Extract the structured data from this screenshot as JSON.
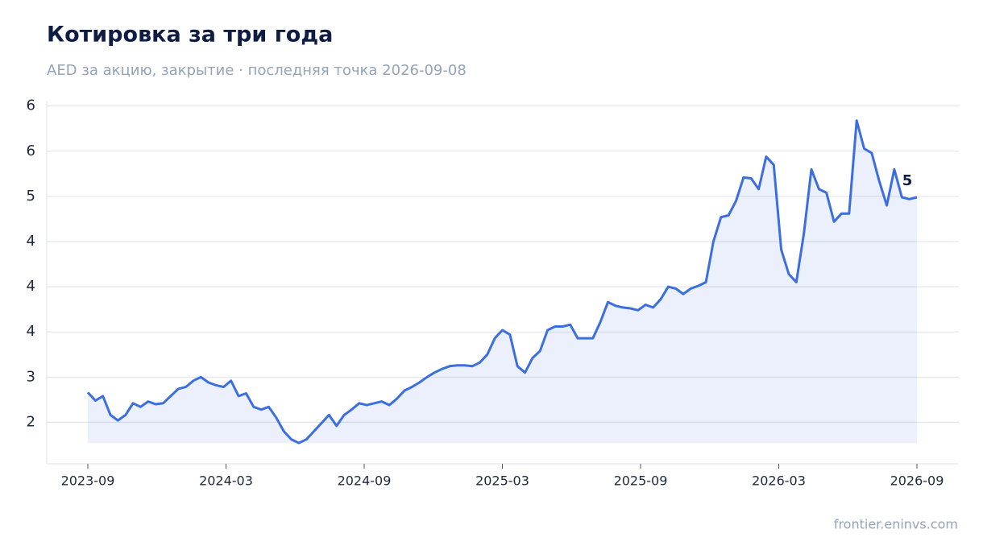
{
  "chart_data": {
    "type": "line",
    "title": "Котировка за три года",
    "subtitle": "AED за акцию, закрытие · последняя точка 2026-09-08",
    "source": "frontier.eninvs.com",
    "x": [
      "2023-09",
      "2023-09",
      "2023-09",
      "2023-10",
      "2023-10",
      "2023-10",
      "2023-11",
      "2023-11",
      "2023-11",
      "2023-12",
      "2023-12",
      "2023-12",
      "2024-01",
      "2024-01",
      "2024-01",
      "2024-02",
      "2024-02",
      "2024-02",
      "2024-03",
      "2024-03",
      "2024-03",
      "2024-04",
      "2024-04",
      "2024-04",
      "2024-05",
      "2024-05",
      "2024-05",
      "2024-06",
      "2024-06",
      "2024-06",
      "2024-07",
      "2024-07",
      "2024-07",
      "2024-08",
      "2024-08",
      "2024-08",
      "2024-09",
      "2024-09",
      "2024-09",
      "2024-10",
      "2024-10",
      "2024-10",
      "2024-11",
      "2024-11",
      "2024-11",
      "2024-12",
      "2024-12",
      "2024-12",
      "2025-01",
      "2025-01",
      "2025-01",
      "2025-02",
      "2025-02",
      "2025-02",
      "2025-03",
      "2025-03",
      "2025-03",
      "2025-04",
      "2025-04",
      "2025-04",
      "2025-05",
      "2025-05",
      "2025-05",
      "2025-06",
      "2025-06",
      "2025-06",
      "2025-07",
      "2025-07",
      "2025-07",
      "2025-08",
      "2025-08",
      "2025-08",
      "2025-09",
      "2025-09",
      "2025-09",
      "2025-10",
      "2025-10",
      "2025-10",
      "2025-11",
      "2025-11",
      "2025-11",
      "2025-12",
      "2025-12",
      "2025-12",
      "2026-01",
      "2026-01",
      "2026-01",
      "2026-02",
      "2026-02",
      "2026-02",
      "2026-03",
      "2026-03",
      "2026-03",
      "2026-04",
      "2026-04",
      "2026-04",
      "2026-05",
      "2026-05",
      "2026-05",
      "2026-06",
      "2026-06",
      "2026-06",
      "2026-07",
      "2026-07",
      "2026-07",
      "2026-08",
      "2026-08",
      "2026-08",
      "2026-09",
      "2026-09",
      "2026-09"
    ],
    "series": [
      {
        "name": "Закрытие",
        "color": "#3b6ee0",
        "values": [
          2.83,
          2.74,
          2.79,
          2.58,
          2.52,
          2.58,
          2.71,
          2.67,
          2.73,
          2.7,
          2.71,
          2.79,
          2.87,
          2.89,
          2.96,
          3.0,
          2.94,
          2.91,
          2.89,
          2.96,
          2.79,
          2.82,
          2.67,
          2.64,
          2.67,
          2.55,
          2.4,
          2.31,
          2.27,
          2.31,
          2.4,
          2.49,
          2.58,
          2.46,
          2.58,
          2.64,
          2.71,
          2.69,
          2.71,
          2.73,
          2.69,
          2.76,
          2.85,
          2.89,
          2.94,
          3.0,
          3.05,
          3.09,
          3.12,
          3.13,
          3.13,
          3.12,
          3.16,
          3.25,
          3.43,
          3.52,
          3.47,
          3.12,
          3.05,
          3.21,
          3.29,
          3.52,
          3.56,
          3.56,
          3.58,
          3.43,
          3.43,
          3.43,
          3.61,
          3.83,
          3.79,
          3.77,
          3.76,
          3.74,
          3.8,
          3.77,
          3.86,
          4.0,
          3.98,
          3.92,
          3.98,
          4.01,
          4.05,
          4.5,
          4.77,
          4.79,
          4.95,
          5.21,
          5.2,
          5.08,
          5.44,
          5.35,
          4.41,
          4.14,
          4.05,
          4.59,
          5.3,
          5.08,
          5.04,
          4.72,
          4.81,
          4.81,
          5.84,
          5.53,
          5.48,
          5.17,
          4.9,
          5.3,
          4.99,
          4.97,
          4.99
        ]
      }
    ],
    "annotation": {
      "text": "5",
      "value": 4.99
    },
    "xticks": [
      "2023-09",
      "2024-03",
      "2024-09",
      "2025-03",
      "2025-09",
      "2026-03",
      "2026-09"
    ],
    "ylim": [
      2.04,
      6.06
    ],
    "yticks": [
      {
        "value": 2.5,
        "label": "2"
      },
      {
        "value": 3.0,
        "label": "3"
      },
      {
        "value": 3.5,
        "label": "4"
      },
      {
        "value": 4.0,
        "label": "4"
      },
      {
        "value": 4.5,
        "label": "4"
      },
      {
        "value": 5.0,
        "label": "5"
      },
      {
        "value": 5.5,
        "label": "6"
      },
      {
        "value": 6.0,
        "label": "6"
      }
    ],
    "grid": true
  }
}
